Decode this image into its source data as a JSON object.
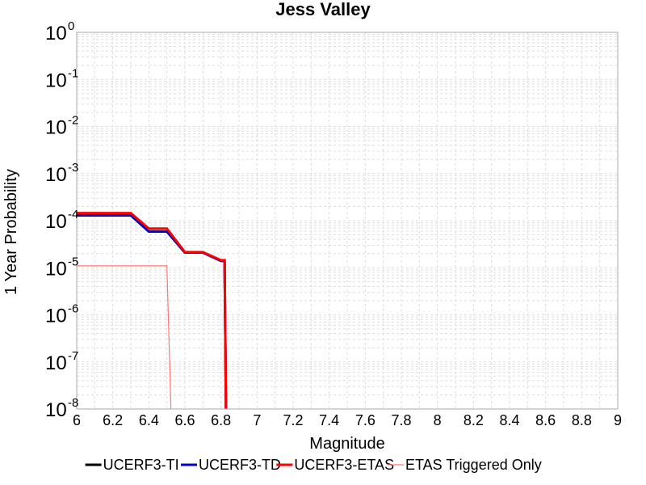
{
  "chart_data": {
    "type": "line",
    "title": "Jess Valley",
    "xlabel": "Magnitude",
    "ylabel": "1 Year Probability",
    "xlim": [
      6,
      9
    ],
    "ylim": [
      1e-08,
      1
    ],
    "yscale": "log",
    "grid": true,
    "legend_position": "bottom",
    "x_ticks": [
      "6",
      "6.2",
      "6.4",
      "6.6",
      "6.8",
      "7",
      "7.2",
      "7.4",
      "7.6",
      "7.8",
      "8",
      "8.2",
      "8.4",
      "8.6",
      "8.8",
      "9"
    ],
    "y_ticks": [
      {
        "base": "10",
        "exp": "0"
      },
      {
        "base": "10",
        "exp": "-1"
      },
      {
        "base": "10",
        "exp": "-2"
      },
      {
        "base": "10",
        "exp": "-3"
      },
      {
        "base": "10",
        "exp": "-4"
      },
      {
        "base": "10",
        "exp": "-5"
      },
      {
        "base": "10",
        "exp": "-6"
      },
      {
        "base": "10",
        "exp": "-7"
      },
      {
        "base": "10",
        "exp": "-8"
      }
    ],
    "series": [
      {
        "name": "UCERF3-TI",
        "color": "#000000",
        "width": 3,
        "x": [
          6.0,
          6.3,
          6.4,
          6.5,
          6.6,
          6.7,
          6.8,
          6.82,
          6.83
        ],
        "y": [
          0.00013,
          0.00013,
          5.9e-05,
          5.9e-05,
          2.1e-05,
          2.1e-05,
          1.4e-05,
          1.4e-05,
          1e-09
        ]
      },
      {
        "name": "UCERF3-TD",
        "color": "#0000cc",
        "width": 3,
        "x": [
          6.0,
          6.3,
          6.4,
          6.5,
          6.6,
          6.7,
          6.8,
          6.82,
          6.83
        ],
        "y": [
          0.00013,
          0.00013,
          5.9e-05,
          5.9e-05,
          2.1e-05,
          2.1e-05,
          1.4e-05,
          1.4e-05,
          1e-09
        ]
      },
      {
        "name": "UCERF3-ETAS",
        "color": "#ff0000",
        "width": 3,
        "x": [
          6.0,
          6.3,
          6.4,
          6.5,
          6.6,
          6.7,
          6.8,
          6.82,
          6.83
        ],
        "y": [
          0.000145,
          0.000145,
          6.8e-05,
          6.8e-05,
          2.15e-05,
          2.15e-05,
          1.45e-05,
          1.45e-05,
          1e-09
        ]
      },
      {
        "name": "ETAS Triggered Only",
        "color": "#ff7777",
        "width": 1.2,
        "x": [
          6.0,
          6.5,
          6.53
        ],
        "y": [
          1.1e-05,
          1.1e-05,
          1e-09
        ]
      }
    ]
  }
}
